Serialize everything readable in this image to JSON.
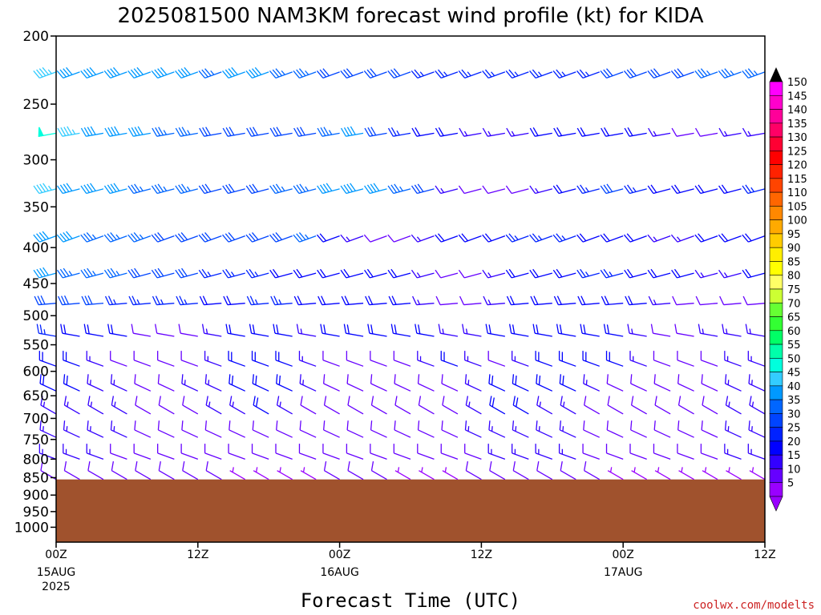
{
  "chart_data": {
    "type": "wind-profile",
    "title": "2025081500 NAM3KM forecast wind profile (kt) for KIDA",
    "xlabel": "Forecast Time (UTC)",
    "credit": "coolwx.com/modelts",
    "y_axis": {
      "quantity": "pressure (hPa)",
      "range": [
        200,
        1050
      ],
      "scale": "log",
      "ticks": [
        200,
        250,
        300,
        350,
        400,
        450,
        500,
        550,
        600,
        650,
        700,
        750,
        800,
        850,
        900,
        950,
        1000
      ]
    },
    "x_axis": {
      "range_hours": [
        0,
        60
      ],
      "ticks": [
        {
          "hour": 0,
          "label": "00Z",
          "date": "15AUG",
          "year": "2025"
        },
        {
          "hour": 12,
          "label": "12Z",
          "date": "",
          "year": ""
        },
        {
          "hour": 24,
          "label": "00Z",
          "date": "16AUG",
          "year": ""
        },
        {
          "hour": 36,
          "label": "12Z",
          "date": "",
          "year": ""
        },
        {
          "hour": 48,
          "label": "00Z",
          "date": "17AUG",
          "year": ""
        },
        {
          "hour": 60,
          "label": "12Z",
          "date": "",
          "year": ""
        }
      ]
    },
    "ground_pressure": 855,
    "ground_color": "#a0522d",
    "colorbar": {
      "labels": [
        "150",
        "145",
        "140",
        "135",
        "130",
        "125",
        "120",
        "115",
        "110",
        "105",
        "100",
        "95",
        "90",
        "85",
        "80",
        "75",
        "70",
        "65",
        "60",
        "55",
        "50",
        "45",
        "40",
        "35",
        "30",
        "25",
        "20",
        "15",
        "10",
        "5"
      ],
      "colors": [
        "#ff00ff",
        "#ff00cc",
        "#ff0099",
        "#ff0066",
        "#ff0033",
        "#ff0000",
        "#ff2200",
        "#ff4400",
        "#ff6600",
        "#ff8800",
        "#ffaa00",
        "#ffcc00",
        "#ffee00",
        "#ffff00",
        "#ffff66",
        "#ccff33",
        "#66ff33",
        "#33ff33",
        "#00ff66",
        "#00ffaa",
        "#00ffdd",
        "#33ccff",
        "#0099ff",
        "#0066ff",
        "#0044ff",
        "#0022ff",
        "#0000ff",
        "#3300ff",
        "#6600ff",
        "#9900ff"
      ]
    },
    "wind_rows": [
      {
        "p": 225,
        "dir": 250,
        "spd": [
          45,
          42,
          40,
          38,
          40,
          38,
          38,
          36,
          38,
          40,
          36,
          34,
          32,
          30,
          30,
          28,
          26,
          25,
          25,
          24,
          25,
          25,
          24,
          26,
          28,
          28,
          30,
          32,
          34,
          36,
          35
        ]
      },
      {
        "p": 275,
        "dir": 260,
        "spd": [
          50,
          45,
          42,
          40,
          38,
          36,
          35,
          30,
          28,
          28,
          30,
          32,
          35,
          38,
          30,
          25,
          20,
          18,
          15,
          14,
          15,
          18,
          20,
          22,
          20,
          18,
          15,
          12,
          12,
          15,
          15
        ]
      },
      {
        "p": 330,
        "dir": 255,
        "spd": [
          45,
          42,
          40,
          38,
          36,
          35,
          33,
          30,
          30,
          32,
          35,
          36,
          38,
          40,
          40,
          35,
          30,
          15,
          10,
          10,
          12,
          15,
          20,
          25,
          28,
          25,
          20,
          18,
          20,
          22,
          25
        ]
      },
      {
        "p": 385,
        "dir": 250,
        "spd": [
          40,
          38,
          36,
          34,
          33,
          32,
          30,
          30,
          28,
          28,
          32,
          34,
          20,
          15,
          12,
          12,
          15,
          18,
          20,
          22,
          24,
          25,
          24,
          22,
          20,
          18,
          15,
          15,
          18,
          20,
          22
        ]
      },
      {
        "p": 435,
        "dir": 255,
        "spd": [
          38,
          36,
          35,
          33,
          32,
          30,
          28,
          26,
          25,
          24,
          22,
          20,
          18,
          18,
          20,
          20,
          15,
          12,
          12,
          15,
          18,
          20,
          22,
          25,
          25,
          22,
          20,
          18,
          15,
          15,
          18
        ]
      },
      {
        "p": 480,
        "dir": 265,
        "spd": [
          32,
          30,
          28,
          26,
          25,
          25,
          24,
          22,
          22,
          24,
          25,
          22,
          20,
          18,
          18,
          20,
          15,
          12,
          12,
          15,
          18,
          20,
          22,
          22,
          20,
          18,
          15,
          12,
          12,
          10,
          10
        ]
      },
      {
        "p": 535,
        "dir": 280,
        "spd": [
          25,
          22,
          20,
          18,
          12,
          10,
          12,
          15,
          18,
          20,
          18,
          15,
          18,
          20,
          22,
          22,
          18,
          15,
          15,
          18,
          20,
          22,
          22,
          20,
          18,
          15,
          12,
          12,
          15,
          15,
          15
        ]
      },
      {
        "p": 590,
        "dir": 290,
        "spd": [
          20,
          18,
          15,
          12,
          8,
          10,
          12,
          15,
          18,
          20,
          18,
          15,
          12,
          10,
          10,
          12,
          15,
          18,
          15,
          12,
          15,
          18,
          20,
          20,
          18,
          15,
          12,
          10,
          12,
          15,
          15
        ]
      },
      {
        "p": 640,
        "dir": 295,
        "spd": [
          18,
          18,
          16,
          15,
          12,
          12,
          14,
          15,
          18,
          20,
          18,
          15,
          12,
          10,
          10,
          12,
          10,
          12,
          15,
          18,
          20,
          20,
          18,
          15,
          12,
          10,
          10,
          10,
          12,
          15,
          15
        ]
      },
      {
        "p": 690,
        "dir": 300,
        "spd": [
          16,
          15,
          15,
          15,
          12,
          10,
          12,
          14,
          15,
          18,
          15,
          12,
          10,
          10,
          10,
          12,
          10,
          12,
          15,
          18,
          18,
          15,
          15,
          12,
          10,
          10,
          10,
          10,
          12,
          15,
          15
        ]
      },
      {
        "p": 745,
        "dir": 295,
        "spd": [
          15,
          14,
          14,
          14,
          12,
          10,
          10,
          12,
          10,
          8,
          8,
          10,
          10,
          12,
          10,
          10,
          10,
          12,
          15,
          15,
          15,
          14,
          14,
          12,
          10,
          10,
          10,
          10,
          12,
          15,
          15
        ]
      },
      {
        "p": 800,
        "dir": 290,
        "spd": [
          14,
          14,
          14,
          12,
          12,
          10,
          10,
          8,
          8,
          8,
          8,
          8,
          10,
          10,
          8,
          10,
          10,
          12,
          12,
          14,
          15,
          15,
          14,
          12,
          10,
          10,
          10,
          10,
          12,
          14,
          14
        ]
      },
      {
        "p": 855,
        "dir": 300,
        "spd": [
          10,
          10,
          10,
          10,
          8,
          8,
          8,
          8,
          6,
          6,
          6,
          6,
          8,
          8,
          8,
          6,
          6,
          6,
          8,
          8,
          8,
          8,
          8,
          8,
          6,
          6,
          6,
          6,
          6,
          6,
          6
        ]
      }
    ]
  }
}
